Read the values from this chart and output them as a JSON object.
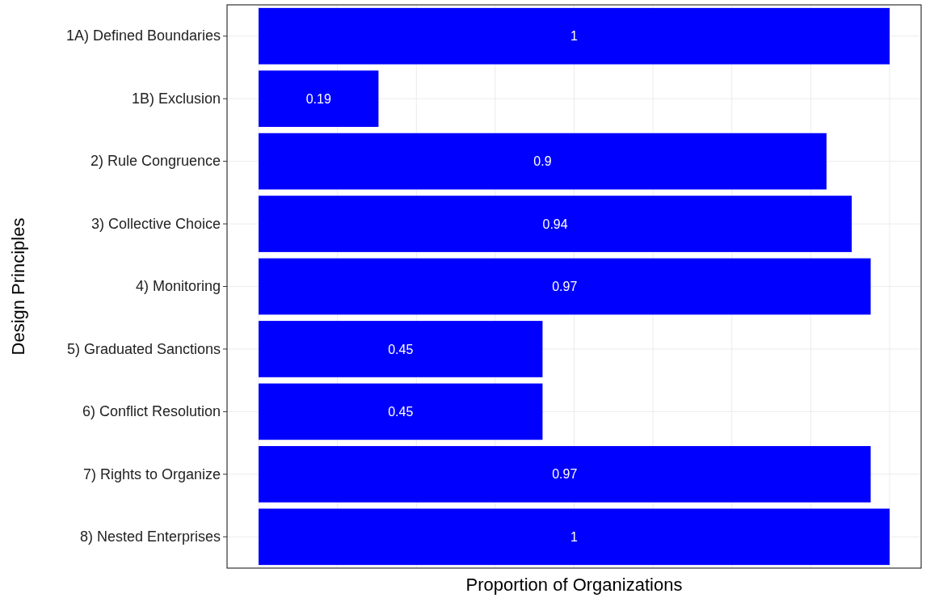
{
  "chart_data": {
    "type": "bar",
    "orientation": "horizontal",
    "xlabel": "Proportion of Organizations",
    "ylabel": "Design Principles",
    "categories": [
      "1A) Defined Boundaries",
      "1B) Exclusion",
      "2) Rule Congruence",
      "3) Collective Choice",
      "4) Monitoring",
      "5) Graduated Sanctions",
      "6) Conflict Resolution",
      "7) Rights to Organize",
      "8) Nested Enterprises"
    ],
    "values": [
      1,
      0.19,
      0.9,
      0.94,
      0.97,
      0.45,
      0.45,
      0.97,
      1
    ],
    "color": "#0000ff",
    "data_labels": true,
    "xlim": [
      -0.05,
      1.05
    ],
    "xticks": [
      {
        "value": 0,
        "label": null
      },
      {
        "value": 0.125,
        "label": null
      },
      {
        "value": 0.25,
        "label": null
      },
      {
        "value": 0.375,
        "label": null
      },
      {
        "value": 0.5,
        "label": null
      },
      {
        "value": 0.625,
        "label": null
      },
      {
        "value": 0.75,
        "label": null
      },
      {
        "value": 0.875,
        "label": null
      },
      {
        "value": 1,
        "label": null
      }
    ],
    "tick_labels": "y",
    "grid": true
  }
}
